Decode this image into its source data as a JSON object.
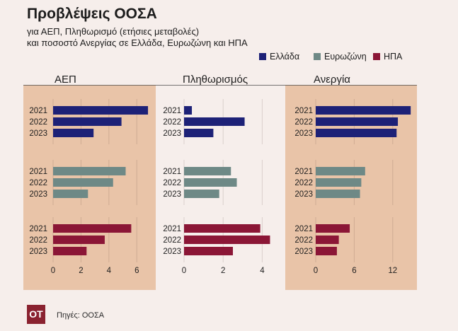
{
  "chart_data": {
    "type": "bar",
    "orientation": "horizontal",
    "title": "Προβλέψεις ΟΟΣΑ",
    "subtitle": [
      "για ΑΕΠ, Πληθωρισμό (ετήσιες μεταβολές)",
      "και ποσοστό Ανεργίας σε Ελλάδα, Ευρωζώνη και ΗΠΑ"
    ],
    "legend_position": "top-right",
    "grid": true,
    "categories": [
      "2021",
      "2022",
      "2023"
    ],
    "series": [
      {
        "name": "Ελλάδα",
        "color": "#1d2177"
      },
      {
        "name": "Ευρωζώνη",
        "color": "#6e8986"
      },
      {
        "name": "ΗΠΑ",
        "color": "#8b1636"
      }
    ],
    "panels": [
      {
        "title": "ΑΕΠ",
        "xlim": [
          0,
          7
        ],
        "xticks": [
          0,
          2,
          4,
          6
        ],
        "shaded": true,
        "values": [
          [
            6.8,
            4.9,
            2.9
          ],
          [
            5.2,
            4.3,
            2.5
          ],
          [
            5.6,
            3.7,
            2.4
          ]
        ]
      },
      {
        "title": "Πληθωρισμός",
        "xlim": [
          0,
          5
        ],
        "xticks": [
          0,
          2,
          4
        ],
        "shaded": false,
        "values": [
          [
            0.4,
            3.1,
            1.5
          ],
          [
            2.4,
            2.7,
            1.8
          ],
          [
            3.9,
            4.4,
            2.5
          ]
        ]
      },
      {
        "title": "Ανεργία",
        "xlim": [
          0,
          15
        ],
        "xticks": [
          0,
          6,
          12
        ],
        "shaded": true,
        "values": [
          [
            14.8,
            12.8,
            12.6
          ],
          [
            7.7,
            7.1,
            6.9
          ],
          [
            5.3,
            3.6,
            3.3
          ]
        ]
      }
    ]
  },
  "colors": {
    "background": "#f6eeeb",
    "panel_shade": "#e9c4a8",
    "logo": "#8a2230"
  },
  "footer": {
    "logo_text": "OT",
    "source": "Πηγές: ΟΟΣΑ"
  }
}
